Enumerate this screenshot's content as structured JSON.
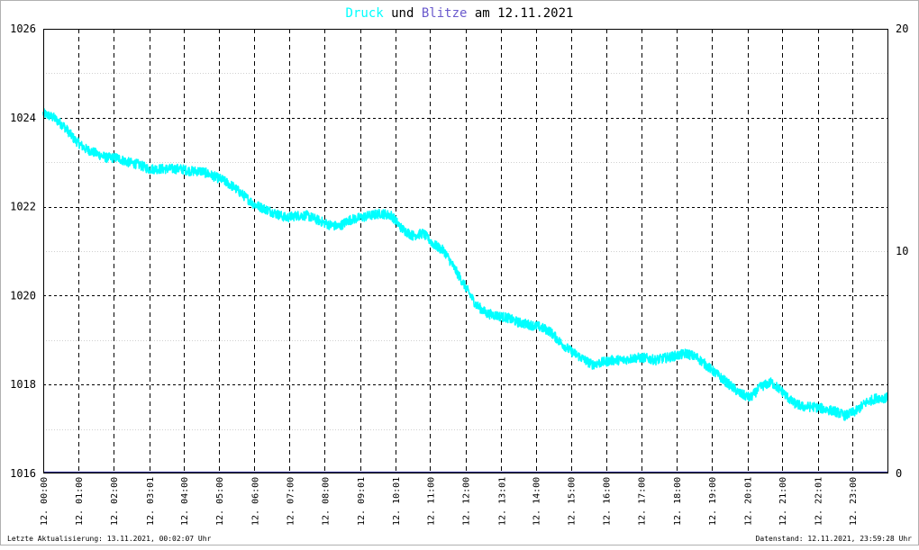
{
  "title": {
    "druck": "Druck",
    "und": "und",
    "blitze": "Blitze",
    "am": "am",
    "date": "12.11.2021"
  },
  "footer": {
    "left": "Letzte Aktualisierung: 13.11.2021, 00:02:07 Uhr",
    "right": "Datenstand: 12.11.2021, 23:59:28 Uhr"
  },
  "colors": {
    "druck": "#00ffff",
    "blitze": "#6a5acd",
    "title_text": "#000000",
    "grid": "#000000",
    "baseline": "#000080"
  },
  "chart_data": {
    "type": "line",
    "y_left": {
      "ticks": [
        "1016",
        "1018",
        "1020",
        "1022",
        "1024",
        "1026"
      ],
      "range": [
        1016,
        1026
      ]
    },
    "y_right": {
      "ticks": [
        "0",
        "10",
        "20"
      ],
      "range": [
        0,
        20
      ]
    },
    "x_ticks": [
      "12. 00:00",
      "12. 01:00",
      "12. 02:00",
      "12. 03:01",
      "12. 04:00",
      "12. 05:00",
      "12. 06:00",
      "12. 07:00",
      "12. 08:00",
      "12. 09:01",
      "12. 10:01",
      "12. 11:00",
      "12. 12:00",
      "12. 13:01",
      "12. 14:00",
      "12. 15:00",
      "12. 16:00",
      "12. 17:00",
      "12. 18:00",
      "12. 19:00",
      "12. 20:01",
      "12. 21:00",
      "12. 22:01",
      "12. 23:00"
    ],
    "x_tick_hours": [
      0,
      1,
      2,
      3.02,
      4,
      5,
      6,
      7,
      8,
      9.02,
      10.02,
      11,
      12,
      13.02,
      14,
      15,
      16,
      17,
      18,
      19,
      20.02,
      21,
      22.02,
      23
    ],
    "x_range_hours": [
      0,
      24
    ],
    "grid": true,
    "series": [
      {
        "name": "Druck",
        "axis": "left",
        "color": "#00ffff",
        "x_hours": [
          0,
          0.3,
          0.6,
          0.9,
          1.2,
          1.5,
          1.8,
          2.1,
          2.4,
          2.7,
          3.0,
          3.3,
          3.6,
          3.9,
          4.2,
          4.5,
          4.8,
          5.1,
          5.4,
          5.7,
          6.0,
          6.3,
          6.6,
          6.9,
          7.2,
          7.5,
          7.8,
          8.1,
          8.4,
          8.7,
          9.0,
          9.3,
          9.6,
          9.9,
          10.2,
          10.5,
          10.8,
          11.1,
          11.4,
          11.7,
          12.0,
          12.3,
          12.6,
          12.9,
          13.2,
          13.5,
          13.8,
          14.1,
          14.4,
          14.7,
          15.0,
          15.3,
          15.6,
          15.9,
          16.2,
          16.5,
          16.8,
          17.1,
          17.4,
          17.7,
          18.0,
          18.3,
          18.6,
          18.9,
          19.2,
          19.5,
          19.8,
          20.1,
          20.4,
          20.7,
          21.0,
          21.3,
          21.6,
          21.9,
          22.2,
          22.5,
          22.8,
          23.1,
          23.4,
          23.7,
          24.0
        ],
        "values": [
          1024.1,
          1024.0,
          1023.8,
          1023.5,
          1023.3,
          1023.2,
          1023.1,
          1023.1,
          1023.0,
          1022.95,
          1022.85,
          1022.85,
          1022.85,
          1022.85,
          1022.8,
          1022.8,
          1022.7,
          1022.6,
          1022.45,
          1022.25,
          1022.05,
          1021.95,
          1021.85,
          1021.75,
          1021.8,
          1021.8,
          1021.7,
          1021.6,
          1021.55,
          1021.7,
          1021.75,
          1021.8,
          1021.85,
          1021.8,
          1021.5,
          1021.35,
          1021.4,
          1021.15,
          1021.0,
          1020.6,
          1020.2,
          1019.8,
          1019.6,
          1019.55,
          1019.5,
          1019.4,
          1019.35,
          1019.3,
          1019.2,
          1018.95,
          1018.75,
          1018.6,
          1018.45,
          1018.5,
          1018.55,
          1018.55,
          1018.6,
          1018.6,
          1018.55,
          1018.6,
          1018.65,
          1018.7,
          1018.6,
          1018.4,
          1018.2,
          1018.0,
          1017.8,
          1017.7,
          1017.95,
          1018.05,
          1017.85,
          1017.6,
          1017.5,
          1017.5,
          1017.45,
          1017.4,
          1017.3,
          1017.4,
          1017.6,
          1017.7,
          1017.7
        ]
      },
      {
        "name": "Blitze",
        "axis": "right",
        "color": "#000080",
        "x_hours": [
          0,
          24
        ],
        "values": [
          0,
          0
        ]
      }
    ]
  }
}
